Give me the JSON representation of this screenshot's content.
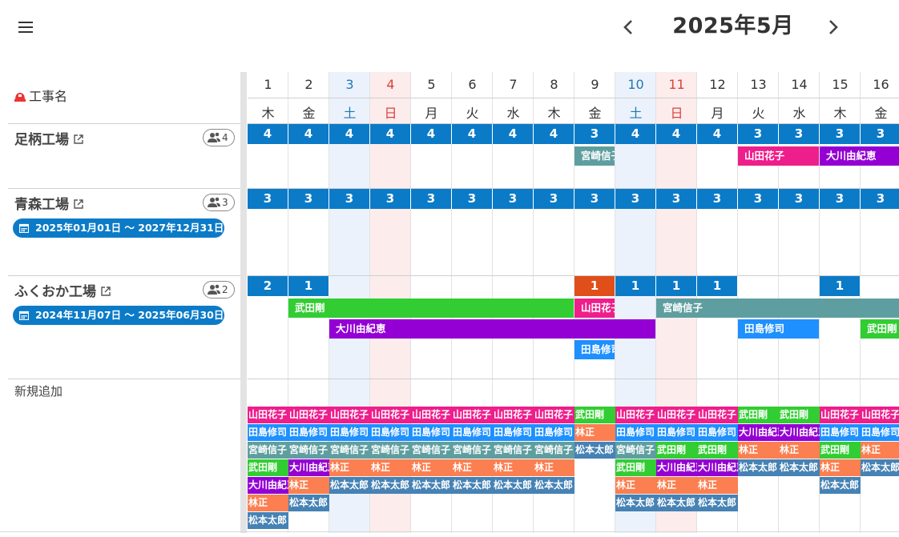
{
  "header": {
    "month": "2025年5月",
    "prev_icon": "chevron-left-icon",
    "next_icon": "chevron-right-icon",
    "menu_icon": "hamburger-menu-icon"
  },
  "table": {
    "project_header_label": "工事名",
    "new_add_label": "新規追加"
  },
  "colors": {
    "count": "#0b7bc8",
    "count_alert": "#e04e1a",
    "山田花子": "#ee1e8b",
    "宮崎信子": "#5f9ea0",
    "大川由紀恵": "#9400d3",
    "武田剛": "#32cd32",
    "田島修司": "#1e90ff",
    "林正": "#fb7f50",
    "松本太郎": "#4682b4"
  },
  "days": [
    {
      "d": "1",
      "w": "木",
      "t": "wd"
    },
    {
      "d": "2",
      "w": "金",
      "t": "wd"
    },
    {
      "d": "3",
      "w": "土",
      "t": "sat"
    },
    {
      "d": "4",
      "w": "日",
      "t": "sun"
    },
    {
      "d": "5",
      "w": "月",
      "t": "wd"
    },
    {
      "d": "6",
      "w": "火",
      "t": "wd"
    },
    {
      "d": "7",
      "w": "水",
      "t": "wd"
    },
    {
      "d": "8",
      "w": "木",
      "t": "wd"
    },
    {
      "d": "9",
      "w": "金",
      "t": "wd"
    },
    {
      "d": "10",
      "w": "土",
      "t": "sat"
    },
    {
      "d": "11",
      "w": "日",
      "t": "sun"
    },
    {
      "d": "12",
      "w": "月",
      "t": "wd"
    },
    {
      "d": "13",
      "w": "火",
      "t": "wd"
    },
    {
      "d": "14",
      "w": "水",
      "t": "wd"
    },
    {
      "d": "15",
      "w": "木",
      "t": "wd"
    },
    {
      "d": "16",
      "w": "金",
      "t": "wd"
    }
  ],
  "projects": [
    {
      "name": "足柄工場",
      "members": "4",
      "period": null,
      "counts": [
        "4",
        "4",
        "4",
        "4",
        "4",
        "4",
        "4",
        "4",
        "3",
        "4",
        "4",
        "4",
        "3",
        "3",
        "3",
        "3"
      ],
      "bars": [
        {
          "label": "宮崎信子",
          "start": 9,
          "end": 9,
          "lane": 0
        },
        {
          "label": "山田花子",
          "start": 13,
          "end": 14,
          "lane": 0
        },
        {
          "label": "大川由紀恵",
          "start": 15,
          "end": 16,
          "lane": 0
        }
      ]
    },
    {
      "name": "青森工場",
      "members": "3",
      "period": "2025年01月01日 〜 2027年12月31日",
      "counts": [
        "3",
        "3",
        "3",
        "3",
        "3",
        "3",
        "3",
        "3",
        "3",
        "3",
        "3",
        "3",
        "3",
        "3",
        "3",
        "3"
      ],
      "bars": []
    },
    {
      "name": "ふくおか工場",
      "members": "2",
      "period": "2024年11月07日 〜 2025年06月30日",
      "counts": [
        "2",
        "1",
        "",
        "",
        "",
        "",
        "",
        "",
        "1",
        "1",
        "1",
        "1",
        "",
        "",
        "1",
        ""
      ],
      "alert_days": [
        9
      ],
      "bars": [
        {
          "label": "武田剛",
          "start": 2,
          "end": 8,
          "lane": 0
        },
        {
          "label": "山田花子",
          "start": 9,
          "end": 9,
          "lane": 0
        },
        {
          "label": "宮崎信子",
          "start": 11,
          "end": 16,
          "lane": 0
        },
        {
          "label": "大川由紀恵",
          "start": 3,
          "end": 10,
          "lane": 1
        },
        {
          "label": "田島修司",
          "start": 13,
          "end": 14,
          "lane": 1
        },
        {
          "label": "武田剛",
          "start": 16,
          "end": 16,
          "lane": 1
        },
        {
          "label": "田島修司",
          "start": 9,
          "end": 9,
          "lane": 2
        }
      ]
    }
  ],
  "availability": [
    [
      "山田花子",
      "田島修司",
      "宮崎信子",
      "武田剛",
      "大川由紀恵",
      "林正",
      "松本太郎"
    ],
    [
      "山田花子",
      "田島修司",
      "宮崎信子",
      "大川由紀恵",
      "林正",
      "松本太郎"
    ],
    [
      "山田花子",
      "田島修司",
      "宮崎信子",
      "林正",
      "松本太郎"
    ],
    [
      "山田花子",
      "田島修司",
      "宮崎信子",
      "林正",
      "松本太郎"
    ],
    [
      "山田花子",
      "田島修司",
      "宮崎信子",
      "林正",
      "松本太郎"
    ],
    [
      "山田花子",
      "田島修司",
      "宮崎信子",
      "林正",
      "松本太郎"
    ],
    [
      "山田花子",
      "田島修司",
      "宮崎信子",
      "林正",
      "松本太郎"
    ],
    [
      "山田花子",
      "田島修司",
      "宮崎信子",
      "林正",
      "松本太郎"
    ],
    [
      "武田剛",
      "林正",
      "松本太郎"
    ],
    [
      "山田花子",
      "田島修司",
      "宮崎信子",
      "武田剛",
      "林正",
      "松本太郎"
    ],
    [
      "山田花子",
      "田島修司",
      "武田剛",
      "大川由紀恵",
      "林正",
      "松本太郎"
    ],
    [
      "山田花子",
      "田島修司",
      "武田剛",
      "大川由紀恵",
      "林正",
      "松本太郎"
    ],
    [
      "武田剛",
      "大川由紀恵",
      "林正",
      "松本太郎"
    ],
    [
      "武田剛",
      "大川由紀恵",
      "林正",
      "松本太郎"
    ],
    [
      "山田花子",
      "田島修司",
      "武田剛",
      "林正",
      "松本太郎"
    ],
    [
      "山田花子",
      "田島修司",
      "林正",
      "松本太郎"
    ]
  ]
}
